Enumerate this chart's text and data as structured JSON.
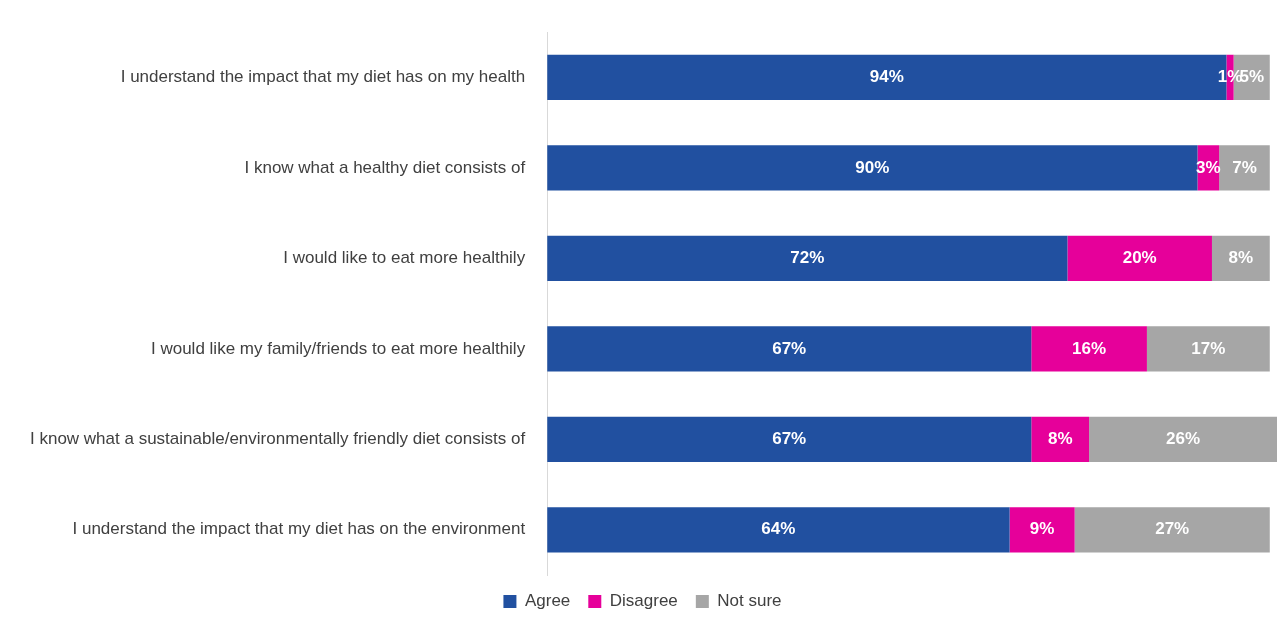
{
  "chart_data": {
    "type": "bar",
    "orientation": "horizontal",
    "stacked": true,
    "legend": "bottom",
    "tick_labels": "y",
    "categories": [
      "I understand the impact that my diet has on my health",
      "I know what a healthy diet consists of",
      "I would like to eat more healthily",
      "I would like my family/friends to eat more healthily",
      "I know what a sustainable/environmentally friendly diet consists of",
      "I understand the impact that my diet has on the environment"
    ],
    "series": [
      {
        "name": "Agree",
        "color": "#2150a0",
        "values": [
          94,
          90,
          72,
          67,
          67,
          64
        ],
        "value_labels": [
          "94%",
          "90%",
          "72%",
          "67%",
          "67%",
          "64%"
        ]
      },
      {
        "name": "Disagree",
        "color": "#e6009a",
        "values": [
          1,
          3,
          20,
          16,
          8,
          9
        ],
        "value_labels": [
          "1%",
          "3%",
          "20%",
          "16%",
          "8%",
          "9%"
        ]
      },
      {
        "name": "Not sure",
        "color": "#a6a6a6",
        "values": [
          5,
          7,
          8,
          17,
          26,
          27
        ],
        "value_labels": [
          "5%",
          "7%",
          "8%",
          "17%",
          "26%",
          "27%"
        ]
      }
    ]
  }
}
